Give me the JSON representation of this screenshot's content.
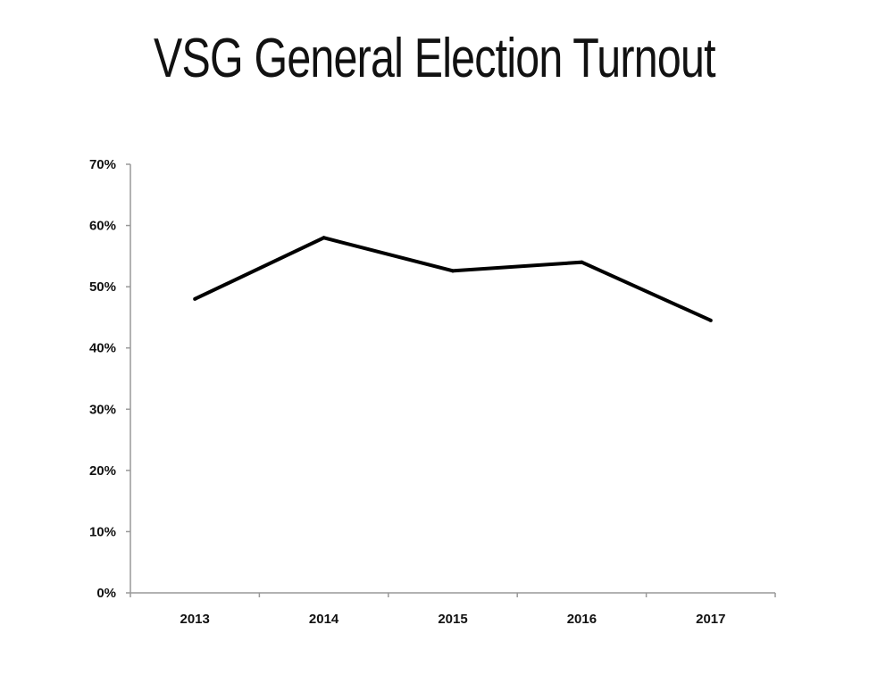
{
  "chart_data": {
    "type": "line",
    "title": "VSG General Election Turnout",
    "categories": [
      "2013",
      "2014",
      "2015",
      "2016",
      "2017"
    ],
    "series": [
      {
        "values": [
          48.0,
          58.0,
          52.6,
          54.0,
          44.5
        ]
      }
    ],
    "ylim": [
      0,
      70
    ],
    "yticks": [
      "0%",
      "10%",
      "20%",
      "30%",
      "40%",
      "50%",
      "60%",
      "70%"
    ],
    "ytick_values": [
      0,
      10,
      20,
      30,
      40,
      50,
      60,
      70
    ],
    "y_unit": "%",
    "grid": false,
    "legend": "none",
    "line_color": "#000000",
    "axis_color": "#999999"
  }
}
